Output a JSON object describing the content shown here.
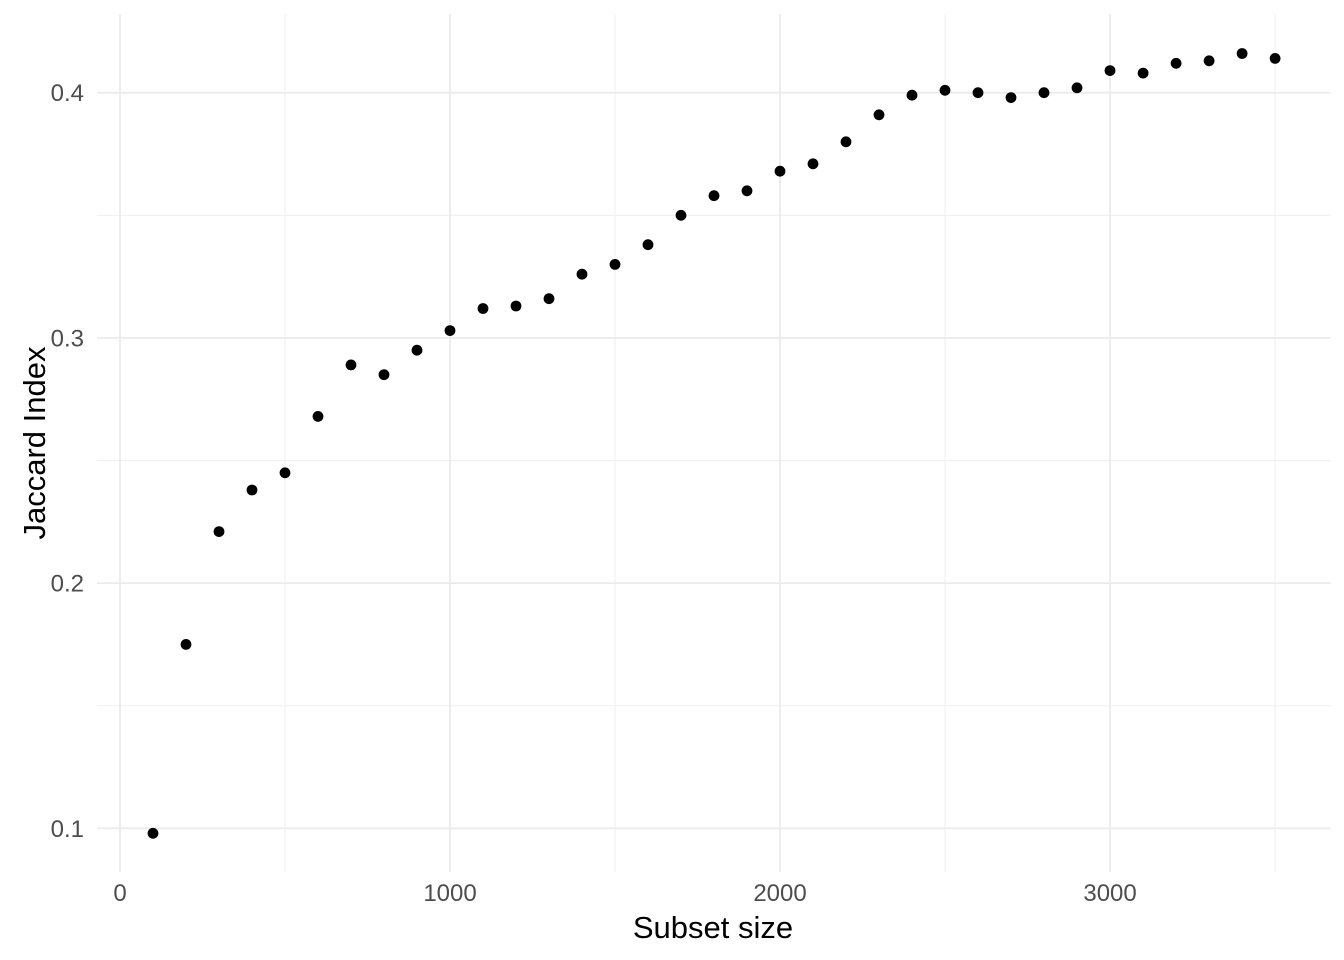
{
  "chart_data": {
    "type": "scatter",
    "xlabel": "Subset size",
    "ylabel": "Jaccard Index",
    "x_ticks": [
      0,
      1000,
      2000,
      3000
    ],
    "x_minor_ticks": [
      500,
      1500,
      2500,
      3500
    ],
    "y_ticks": [
      0.1,
      0.2,
      0.3,
      0.4
    ],
    "y_minor_ticks": [
      0.15,
      0.25,
      0.35
    ],
    "xlim": [
      -70,
      3668
    ],
    "ylim": [
      0.0822,
      0.4321
    ],
    "grid": true,
    "legend": false,
    "background_color": "#FFFFFF",
    "point_color": "#000000",
    "grid_major_color": "#EBEBEB",
    "grid_minor_color": "#F0F0F0",
    "tick_label_color": "#4D4D4D",
    "axis_title_color": "#000000",
    "x": [
      100,
      200,
      300,
      400,
      500,
      600,
      700,
      800,
      900,
      1000,
      1100,
      1200,
      1300,
      1400,
      1500,
      1600,
      1700,
      1800,
      1900,
      2000,
      2100,
      2200,
      2300,
      2400,
      2500,
      2600,
      2700,
      2800,
      2900,
      3000,
      3100,
      3200,
      3300,
      3400,
      3500
    ],
    "y": [
      0.098,
      0.175,
      0.221,
      0.238,
      0.245,
      0.268,
      0.289,
      0.285,
      0.295,
      0.303,
      0.312,
      0.313,
      0.316,
      0.326,
      0.33,
      0.338,
      0.35,
      0.358,
      0.36,
      0.368,
      0.371,
      0.38,
      0.391,
      0.399,
      0.401,
      0.4,
      0.398,
      0.4,
      0.402,
      0.409,
      0.408,
      0.412,
      0.413,
      0.416,
      0.414
    ]
  }
}
